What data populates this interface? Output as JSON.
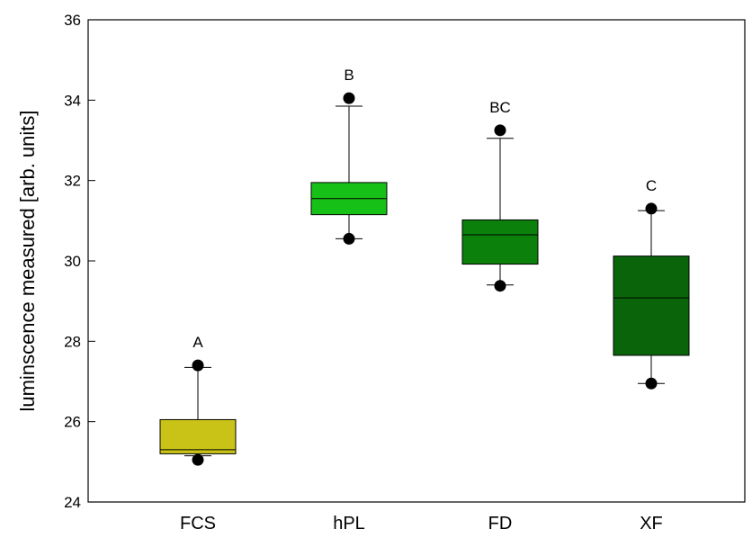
{
  "chart_data": {
    "type": "box",
    "title": "",
    "xlabel": "",
    "ylabel": "luminscence measured [arb. units]",
    "ylim": [
      24,
      36
    ],
    "yticks": [
      24,
      26,
      28,
      30,
      32,
      34,
      36
    ],
    "grid": false,
    "categories": [
      "FCS",
      "hPL",
      "FD",
      "XF"
    ],
    "boxes": [
      {
        "category": "FCS",
        "whisker_low": 25.15,
        "q1": 25.2,
        "median": 25.3,
        "q3": 26.05,
        "whisker_high": 27.35,
        "outliers": [
          25.05,
          27.4
        ],
        "significance": "A",
        "color": "#c8c316"
      },
      {
        "category": "hPL",
        "whisker_low": 30.55,
        "q1": 31.15,
        "median": 31.55,
        "q3": 31.95,
        "whisker_high": 33.85,
        "outliers": [
          30.55,
          34.05
        ],
        "significance": "B",
        "color": "#17c017"
      },
      {
        "category": "FD",
        "whisker_low": 29.4,
        "q1": 29.92,
        "median": 30.65,
        "q3": 31.02,
        "whisker_high": 33.05,
        "outliers": [
          29.38,
          33.25
        ],
        "significance": "BC",
        "color": "#0b800b"
      },
      {
        "category": "XF",
        "whisker_low": 26.95,
        "q1": 27.65,
        "median": 29.08,
        "q3": 30.12,
        "whisker_high": 31.25,
        "outliers": [
          26.95,
          31.3
        ],
        "significance": "C",
        "color": "#0a650a"
      }
    ]
  }
}
